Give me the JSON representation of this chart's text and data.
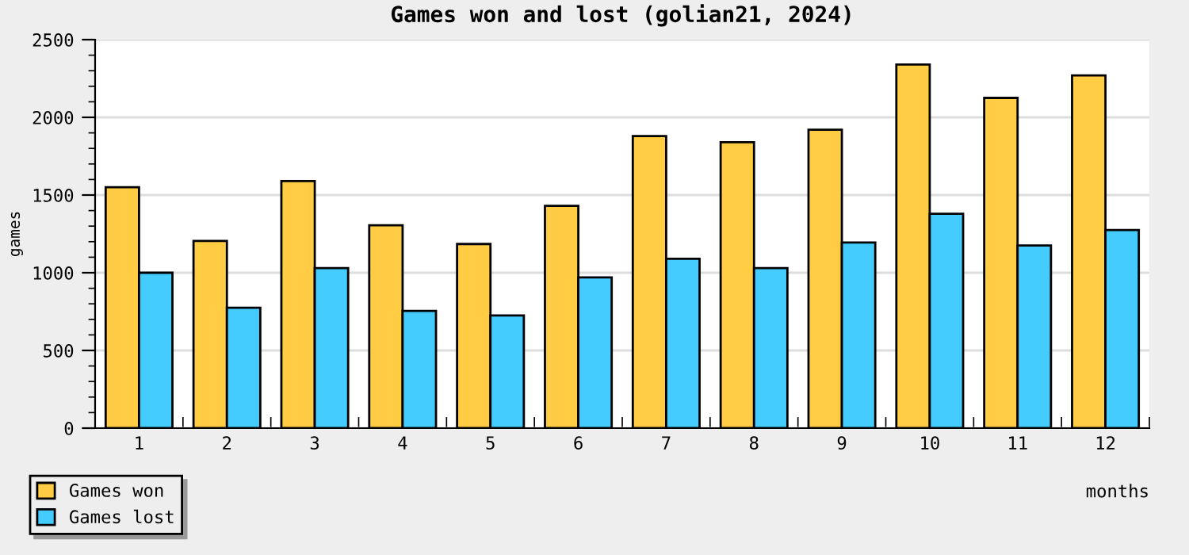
{
  "chart_data": {
    "type": "bar",
    "title": "Games won and lost (golian21, 2024)",
    "xlabel": "months",
    "ylabel": "games",
    "categories": [
      "1",
      "2",
      "3",
      "4",
      "5",
      "6",
      "7",
      "8",
      "9",
      "10",
      "11",
      "12"
    ],
    "series": [
      {
        "name": "Games won",
        "color": "#ffcc44",
        "values": [
          1550,
          1205,
          1590,
          1305,
          1185,
          1430,
          1880,
          1840,
          1920,
          2340,
          2125,
          2270
        ]
      },
      {
        "name": "Games lost",
        "color": "#44ccff",
        "values": [
          1000,
          775,
          1030,
          755,
          725,
          970,
          1090,
          1030,
          1195,
          1380,
          1175,
          1275
        ]
      }
    ],
    "ylim": [
      0,
      2500
    ],
    "yticks": [
      0,
      500,
      1000,
      1500,
      2000,
      2500
    ],
    "grid": "y",
    "legend": "bottom left"
  }
}
